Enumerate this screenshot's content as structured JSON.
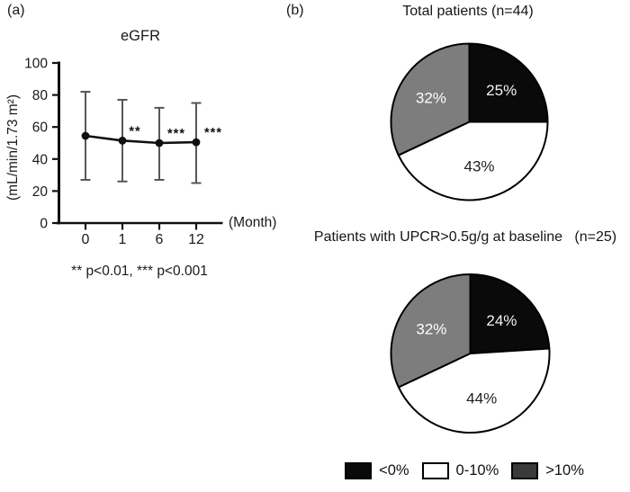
{
  "panel_a": {
    "label": "(a)",
    "chart_title": "eGFR",
    "y_axis_label": "(mL/min/1.73 m²)",
    "x_axis_label": "(Month)",
    "footnote": "** p<0.01, *** p<0.001"
  },
  "panel_b": {
    "label": "(b)",
    "pie1_title": "Total patients (n=44)",
    "pie2_title": "Patients with UPCR>0.5g/g at baseline   (n=25)"
  },
  "legend": {
    "items": [
      {
        "label": "<0%",
        "color": "#0a0a0a"
      },
      {
        "label": "0-10%",
        "color": "#ffffff"
      },
      {
        "label": ">10%",
        "color": "#3a3a3a"
      }
    ]
  },
  "colors": {
    "black_slice": "#0a0a0a",
    "white_slice": "#ffffff",
    "gray_slice": "#7d7d7d",
    "line": "#111111",
    "error_bar": "#4f4f4f",
    "axis": "#111111"
  },
  "chart_data": [
    {
      "type": "line",
      "title": "eGFR",
      "ylabel": "(mL/min/1.73 m²)",
      "xlabel": "(Month)",
      "categories": [
        "0",
        "1",
        "6",
        "12"
      ],
      "x_months": [
        0,
        1,
        6,
        12
      ],
      "yticks": [
        0,
        20,
        40,
        60,
        80,
        100
      ],
      "ylim": [
        0,
        100
      ],
      "series": [
        {
          "name": "eGFR mean",
          "values": [
            54.5,
            51.5,
            50,
            50.5
          ]
        }
      ],
      "error_upper": [
        82,
        77,
        72,
        75
      ],
      "error_lower": [
        27,
        26,
        27,
        25
      ],
      "annotations": [
        {
          "category": "1",
          "index": 1,
          "text": "**"
        },
        {
          "category": "6",
          "index": 2,
          "text": "***"
        },
        {
          "category": "12",
          "index": 3,
          "text": "***"
        }
      ],
      "footnote": "** p<0.01, *** p<0.001",
      "grid": false,
      "legend_position": "none"
    },
    {
      "type": "pie",
      "title": "Total patients (n=44)",
      "start_angle_deg": 0,
      "direction": "clockwise",
      "slices": [
        {
          "label": "<0%",
          "pct": 25,
          "display": "25%",
          "color": "#0a0a0a",
          "label_color": "#f2f2f2"
        },
        {
          "label": "0-10%",
          "pct": 43,
          "display": "43%",
          "color": "#ffffff",
          "label_color": "#1f1f1f"
        },
        {
          "label": ">10%",
          "pct": 32,
          "display": "32%",
          "color": "#7d7d7d",
          "label_color": "#ffffff"
        }
      ]
    },
    {
      "type": "pie",
      "title": "Patients with UPCR>0.5g/g at baseline (n=25)",
      "start_angle_deg": 0,
      "direction": "clockwise",
      "slices": [
        {
          "label": "<0%",
          "pct": 24,
          "display": "24%",
          "color": "#0a0a0a",
          "label_color": "#f2f2f2"
        },
        {
          "label": "0-10%",
          "pct": 44,
          "display": "44%",
          "color": "#ffffff",
          "label_color": "#1f1f1f"
        },
        {
          "label": ">10%",
          "pct": 32,
          "display": "32%",
          "color": "#7d7d7d",
          "label_color": "#ffffff"
        }
      ]
    }
  ]
}
